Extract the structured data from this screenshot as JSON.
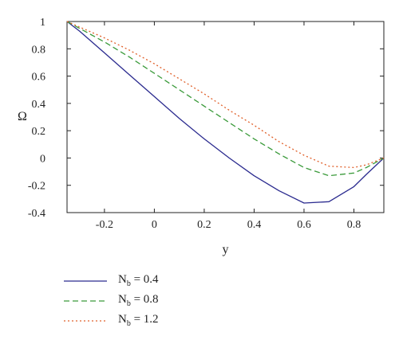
{
  "chart_data": {
    "type": "line",
    "xlabel": "y",
    "ylabel": "Ω",
    "xlim": [
      -0.35,
      0.92
    ],
    "ylim": [
      -0.4,
      1.0
    ],
    "xticks": [
      -0.2,
      0,
      0.2,
      0.4,
      0.6,
      0.8
    ],
    "xtick_labels": [
      "-0.2",
      "0",
      "0.2",
      "0.4",
      "0.6",
      "0.8"
    ],
    "yticks": [
      -0.4,
      -0.2,
      0,
      0.2,
      0.4,
      0.6,
      0.8,
      1.0
    ],
    "ytick_labels": [
      "-0.4",
      "-0.2",
      "0",
      "0.2",
      "0.4",
      "0.6",
      "0.8",
      "1"
    ],
    "grid": false,
    "legend_position": "below",
    "series": [
      {
        "name": "Nb = 0.4",
        "label_main": "N",
        "label_sub": "b",
        "label_rest": " = 0.4",
        "color": "#2b2b8f",
        "style": "solid",
        "x": [
          -0.35,
          -0.3,
          -0.2,
          -0.1,
          0.0,
          0.1,
          0.2,
          0.3,
          0.4,
          0.5,
          0.6,
          0.7,
          0.8,
          0.85,
          0.92
        ],
        "y": [
          1.0,
          0.93,
          0.77,
          0.61,
          0.45,
          0.29,
          0.14,
          0.0,
          -0.13,
          -0.24,
          -0.33,
          -0.32,
          -0.21,
          -0.12,
          0.0
        ]
      },
      {
        "name": "Nb = 0.8",
        "label_main": "N",
        "label_sub": "b",
        "label_rest": " = 0.8",
        "color": "#3a9a3a",
        "style": "dashed",
        "x": [
          -0.35,
          -0.3,
          -0.2,
          -0.1,
          0.0,
          0.1,
          0.2,
          0.3,
          0.4,
          0.5,
          0.6,
          0.7,
          0.8,
          0.85,
          0.92
        ],
        "y": [
          1.0,
          0.95,
          0.85,
          0.74,
          0.62,
          0.5,
          0.38,
          0.26,
          0.14,
          0.03,
          -0.07,
          -0.13,
          -0.11,
          -0.07,
          0.0
        ]
      },
      {
        "name": "Nb = 1.2",
        "label_main": "N",
        "label_sub": "b",
        "label_rest": " = 1.2",
        "color": "#e0602a",
        "style": "dotted",
        "x": [
          -0.35,
          -0.3,
          -0.2,
          -0.1,
          0.0,
          0.1,
          0.2,
          0.3,
          0.4,
          0.5,
          0.6,
          0.7,
          0.8,
          0.85,
          0.92
        ],
        "y": [
          1.0,
          0.96,
          0.88,
          0.79,
          0.69,
          0.58,
          0.47,
          0.35,
          0.24,
          0.12,
          0.02,
          -0.06,
          -0.07,
          -0.05,
          0.0
        ]
      }
    ]
  }
}
